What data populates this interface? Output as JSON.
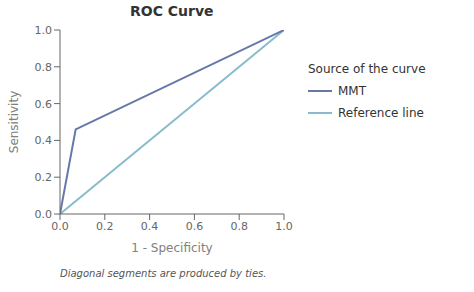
{
  "chart_data": {
    "type": "line",
    "title": "ROC Curve",
    "xlabel": "1 - Specificity",
    "ylabel": "Sensitivity",
    "footnote": "Diagonal segments are produced by ties.",
    "legend_title": "Source of the curve",
    "legend": "right",
    "grid": false,
    "series": [
      {
        "name": "MMT",
        "color": "#6677aa",
        "x": [
          0.0,
          0.0,
          0.07,
          1.0
        ],
        "values": [
          0.0,
          0.0,
          0.46,
          1.0
        ]
      },
      {
        "name": "Reference line",
        "color": "#88bbcc",
        "x": [
          0.0,
          1.0
        ],
        "values": [
          0.0,
          1.0
        ]
      }
    ],
    "xlim": [
      0.0,
      1.0
    ],
    "ylim": [
      0.0,
      1.0
    ],
    "xticks": [
      {
        "value": 0,
        "label": "0.0"
      },
      0.2,
      0.4,
      0.6,
      0.8,
      {
        "value": 1,
        "label": "1.0"
      }
    ],
    "yticks": [
      {
        "value": 0,
        "label": "0.0"
      },
      0.2,
      0.4,
      0.6,
      0.8,
      {
        "value": 1,
        "label": "1.0"
      }
    ]
  }
}
